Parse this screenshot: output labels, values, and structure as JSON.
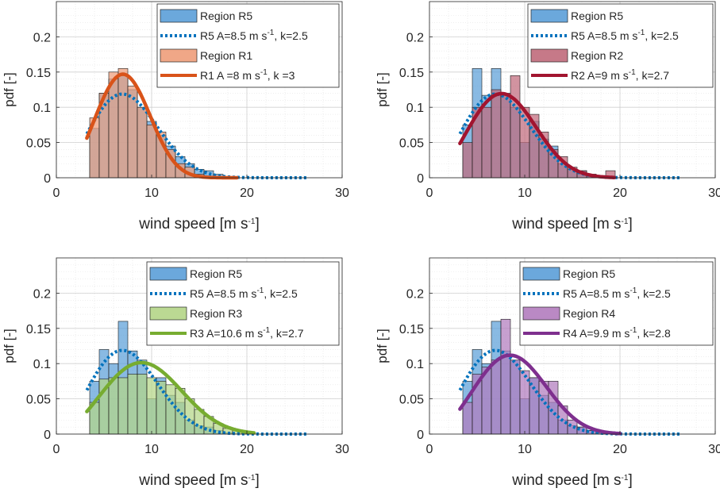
{
  "xlabel": "wind speed [m s",
  "xlabel_sup": "-1",
  "xlabel_end": "]",
  "ylabel": "pdf [-]",
  "colors": {
    "R5": "#0072BD",
    "R5_fill": "#5B9FD8",
    "R1": "#D95319",
    "R1_fill": "#EE9D7A",
    "R2": "#A2142F",
    "R2_fill": "#C06A7B",
    "R3": "#77AC30",
    "R3_fill": "#B4D587",
    "R4": "#7E2F8E",
    "R4_fill": "#B27CBE"
  },
  "chart_data": [
    {
      "type": "bar",
      "id": "R1",
      "xlim": [
        0,
        30
      ],
      "ylim": [
        0,
        0.25
      ],
      "xticks": [
        "0",
        "10",
        "20",
        "30"
      ],
      "yticks": [
        "0",
        "0.05",
        "0.1",
        "0.15",
        "0.2"
      ],
      "bin_edges": [
        3.5,
        4.5,
        5.5,
        6.5,
        7.5,
        8.5,
        9.5,
        10.5,
        11.5,
        12.5,
        13.5,
        14.5,
        15.5,
        16.5,
        17.5,
        18.5
      ],
      "series": [
        {
          "name": "Region R5",
          "kind": "hist",
          "color_key": "R5",
          "values": [
            0.07,
            0.12,
            0.14,
            0.147,
            0.125,
            0.1,
            0.08,
            0.06,
            0.045,
            0.03,
            0.02,
            0.012,
            0.01,
            0.005,
            0.002
          ]
        },
        {
          "name": "R5 A=8.5 m s",
          "sup": "-1",
          "suffix": ", k=2.5",
          "kind": "weibull",
          "A": 8.5,
          "k": 2.5,
          "x0": 3.2,
          "x1": 26.5,
          "color_key": "R5"
        },
        {
          "name": "Region R1",
          "kind": "hist",
          "color_key": "R1",
          "values": [
            0.085,
            0.12,
            0.15,
            0.155,
            0.13,
            0.1,
            0.075,
            0.065,
            0.04,
            0.02,
            0.015,
            0.005,
            0.002,
            0.001,
            0.001
          ]
        },
        {
          "name": "R1 A =8 m s",
          "sup": "-1",
          "suffix": ", k =3",
          "kind": "weibull",
          "A": 8,
          "k": 3,
          "x0": 3.2,
          "x1": 19,
          "color_key": "R1"
        }
      ]
    },
    {
      "type": "bar",
      "id": "R2",
      "xlim": [
        0,
        30
      ],
      "ylim": [
        0,
        0.25
      ],
      "xticks": [
        "0",
        "10",
        "20",
        "30"
      ],
      "yticks": [
        "0",
        "0.05",
        "0.1",
        "0.15",
        "0.2"
      ],
      "bin_edges": [
        3.5,
        4.5,
        5.5,
        6.5,
        7.5,
        8.5,
        9.5,
        10.5,
        11.5,
        12.5,
        13.5,
        14.5,
        15.5,
        16.5,
        17.5,
        18.5,
        19.5
      ],
      "series": [
        {
          "name": "Region R5",
          "kind": "hist",
          "color_key": "R5",
          "values": [
            0.075,
            0.155,
            0.117,
            0.155,
            0.118,
            0.1,
            0.05,
            0.08,
            0.055,
            0.045,
            0.02,
            0.012,
            0.01,
            0.005,
            0.002,
            0.0
          ]
        },
        {
          "name": "R5 A=8.5 m s",
          "sup": "-1",
          "suffix": ", k=2.5",
          "kind": "weibull",
          "A": 8.5,
          "k": 2.5,
          "x0": 3.2,
          "x1": 26.5,
          "color_key": "R5"
        },
        {
          "name": "Region R2",
          "kind": "hist",
          "color_key": "R2",
          "values": [
            0.05,
            0.1,
            0.1,
            0.125,
            0.12,
            0.145,
            0.1,
            0.09,
            0.065,
            0.04,
            0.03,
            0.015,
            0.01,
            0.005,
            0.003,
            0.01
          ]
        },
        {
          "name": "R2 A=9 m s",
          "sup": "-1",
          "suffix": ", k=2.7",
          "kind": "weibull",
          "A": 9,
          "k": 2.7,
          "x0": 3.2,
          "x1": 19.5,
          "color_key": "R2"
        }
      ]
    },
    {
      "type": "bar",
      "id": "R3",
      "xlim": [
        0,
        30
      ],
      "ylim": [
        0,
        0.25
      ],
      "xticks": [
        "0",
        "10",
        "20",
        "30"
      ],
      "yticks": [
        "0",
        "0.05",
        "0.1",
        "0.15",
        "0.2"
      ],
      "bin_edges": [
        3.5,
        4.5,
        5.5,
        6.5,
        7.5,
        8.5,
        9.5,
        10.5,
        11.5,
        12.5,
        13.5,
        14.5,
        15.5,
        16.5,
        17.5,
        18.5,
        19.5,
        20.5
      ],
      "series": [
        {
          "name": "Region R5",
          "kind": "hist",
          "color_key": "R5",
          "values": [
            0.075,
            0.12,
            0.1,
            0.16,
            0.118,
            0.105,
            0.05,
            0.08,
            0.055,
            0.045,
            0.02,
            0.012,
            0.01,
            0.005,
            0.002,
            0.0,
            0.0
          ]
        },
        {
          "name": "R5 A=8.5 m s",
          "sup": "-1",
          "suffix": ", k=2.5",
          "kind": "weibull",
          "A": 8.5,
          "k": 2.5,
          "x0": 3.2,
          "x1": 26.5,
          "color_key": "R5"
        },
        {
          "name": "Region R3",
          "kind": "hist",
          "color_key": "R3",
          "values": [
            0.045,
            0.078,
            0.08,
            0.08,
            0.085,
            0.085,
            0.08,
            0.075,
            0.07,
            0.065,
            0.05,
            0.035,
            0.025,
            0.015,
            0.008,
            0.005,
            0.003
          ]
        },
        {
          "name": "R3 A=10.6 m s",
          "sup": "-1",
          "suffix": ", k=2.7",
          "kind": "weibull",
          "A": 10.6,
          "k": 2.7,
          "x0": 3.2,
          "x1": 20.8,
          "color_key": "R3"
        }
      ]
    },
    {
      "type": "bar",
      "id": "R4",
      "xlim": [
        0,
        30
      ],
      "ylim": [
        0,
        0.25
      ],
      "xticks": [
        "0",
        "10",
        "20",
        "30"
      ],
      "yticks": [
        "0",
        "0.05",
        "0.1",
        "0.15",
        "0.2"
      ],
      "bin_edges": [
        3.5,
        4.5,
        5.5,
        6.5,
        7.5,
        8.5,
        9.5,
        10.5,
        11.5,
        12.5,
        13.5,
        14.5,
        15.5,
        16.5,
        17.5,
        18.5
      ],
      "series": [
        {
          "name": "Region R5",
          "kind": "hist",
          "color_key": "R5",
          "values": [
            0.075,
            0.12,
            0.1,
            0.16,
            0.118,
            0.105,
            0.05,
            0.08,
            0.055,
            0.045,
            0.02,
            0.012,
            0.01,
            0.005,
            0.002
          ]
        },
        {
          "name": "R5 A=8.5 m s",
          "sup": "-1",
          "suffix": ", k=2.5",
          "kind": "weibull",
          "A": 8.5,
          "k": 2.5,
          "x0": 3.2,
          "x1": 26.5,
          "color_key": "R5"
        },
        {
          "name": "Region R4",
          "kind": "hist",
          "color_key": "R4",
          "values": [
            0.045,
            0.085,
            0.095,
            0.105,
            0.163,
            0.105,
            0.09,
            0.08,
            0.075,
            0.075,
            0.04,
            0.02,
            0.01,
            0.005,
            0.002
          ]
        },
        {
          "name": "R4 A=9.9 m s",
          "sup": "-1",
          "suffix": ", k=2.8",
          "kind": "weibull",
          "A": 9.9,
          "k": 2.8,
          "x0": 3.2,
          "x1": 20.0,
          "color_key": "R4"
        }
      ]
    }
  ]
}
